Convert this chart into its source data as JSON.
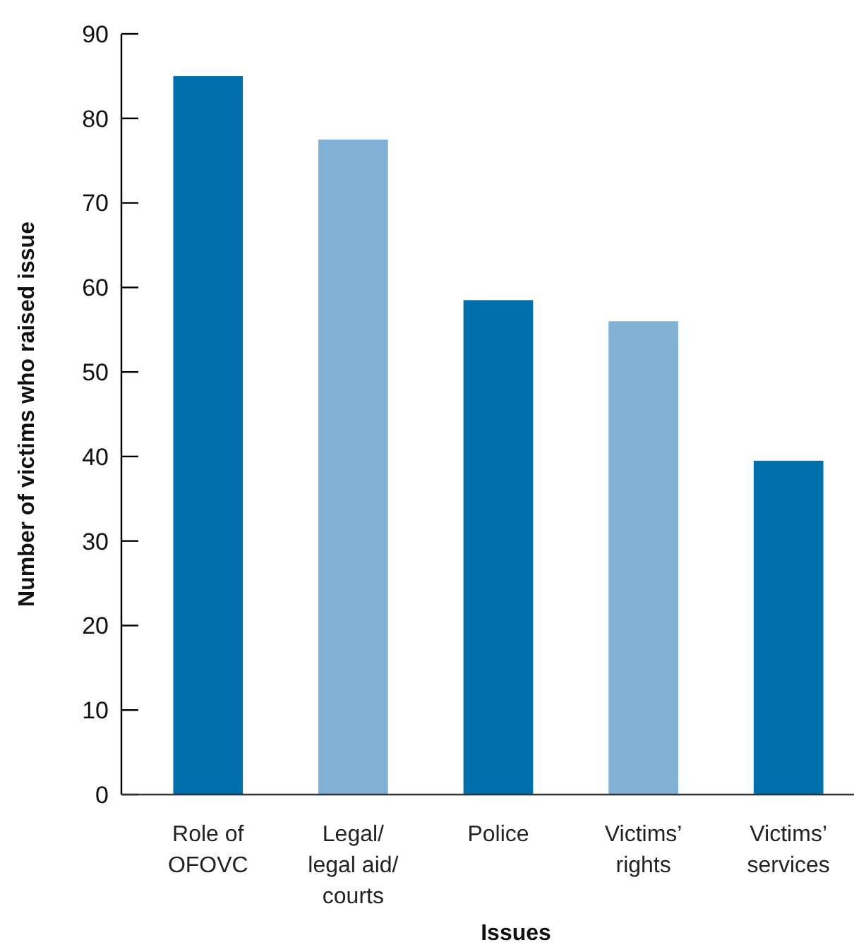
{
  "chart_data": {
    "type": "bar",
    "xlabel": "Issues",
    "ylabel": "Number of victims who raised issue",
    "categories": [
      "Role of OFOVC",
      "Legal/ legal aid/ courts",
      "Police",
      "Victims’ rights",
      "Victims’ services"
    ],
    "values": [
      85,
      77.5,
      58.5,
      56,
      39.5
    ],
    "colors": [
      "#0070ad",
      "#80b0d6",
      "#0070ad",
      "#80b0d6",
      "#0070ad"
    ],
    "ylim": [
      0,
      90
    ],
    "yticks": [
      0,
      10,
      20,
      30,
      40,
      50,
      60,
      70,
      80,
      90
    ],
    "grid": false
  }
}
